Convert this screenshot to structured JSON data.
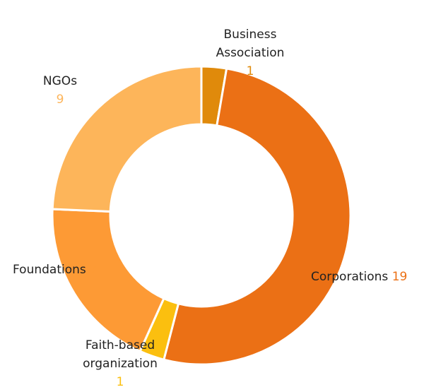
{
  "chart_data": {
    "type": "donut",
    "categories": [
      "Business Association",
      "Corporations",
      "Faith-based organization",
      "Foundations",
      "NGOs"
    ],
    "values": [
      1,
      19,
      1,
      7,
      9
    ],
    "colors": [
      "#e08a0b",
      "#eb7015",
      "#fbbf0f",
      "#fd9a35",
      "#fdb55a"
    ]
  }
}
